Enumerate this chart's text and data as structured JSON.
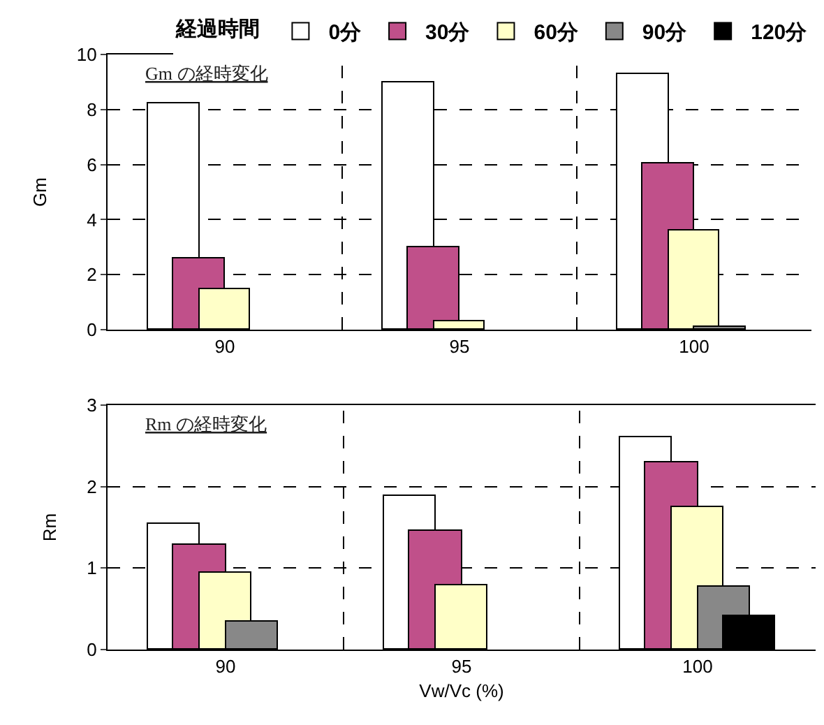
{
  "chart_data": [
    {
      "type": "bar",
      "categories": [
        "90",
        "95",
        "100"
      ],
      "ylabel": "Gm",
      "ylim": [
        0,
        10
      ],
      "yticks": [
        0,
        2,
        4,
        6,
        8,
        10
      ],
      "grid": true,
      "legend": "top",
      "legend_title": "経過時間",
      "annotations": [
        "Gm の経時変化"
      ],
      "series": [
        {
          "name": "0分",
          "color": "#ffffff",
          "values": [
            8.2,
            9.0,
            9.31
          ]
        },
        {
          "name": "30分",
          "color": "#c0508a",
          "values": [
            2.58,
            3.0,
            6.02
          ]
        },
        {
          "name": "60分",
          "color": "#ffffc8",
          "values": [
            1.45,
            0.29,
            3.62
          ]
        },
        {
          "name": "90分",
          "color": "#888888",
          "values": [
            null,
            null,
            0.09
          ]
        },
        {
          "name": "120分",
          "color": "#000000",
          "values": [
            null,
            null,
            null
          ]
        }
      ]
    },
    {
      "type": "bar",
      "categories": [
        "90",
        "95",
        "100"
      ],
      "xlabel": "Vw/Vc (%)",
      "ylabel": "Rm",
      "ylim": [
        0,
        3
      ],
      "yticks": [
        0,
        1,
        2,
        3
      ],
      "grid": true,
      "annotations": [
        "Rm の経時変化"
      ],
      "series": [
        {
          "color": "#ffffff",
          "values": [
            1.55,
            1.89,
            2.61
          ]
        },
        {
          "color": "#c0508a",
          "values": [
            1.29,
            1.45,
            2.29
          ]
        },
        {
          "color": "#ffffc8",
          "values": [
            0.95,
            0.79,
            1.75
          ]
        },
        {
          "color": "#888888",
          "values": [
            0.34,
            null,
            0.78
          ]
        },
        {
          "color": "#000000",
          "values": [
            null,
            null,
            0.41
          ]
        }
      ]
    }
  ]
}
